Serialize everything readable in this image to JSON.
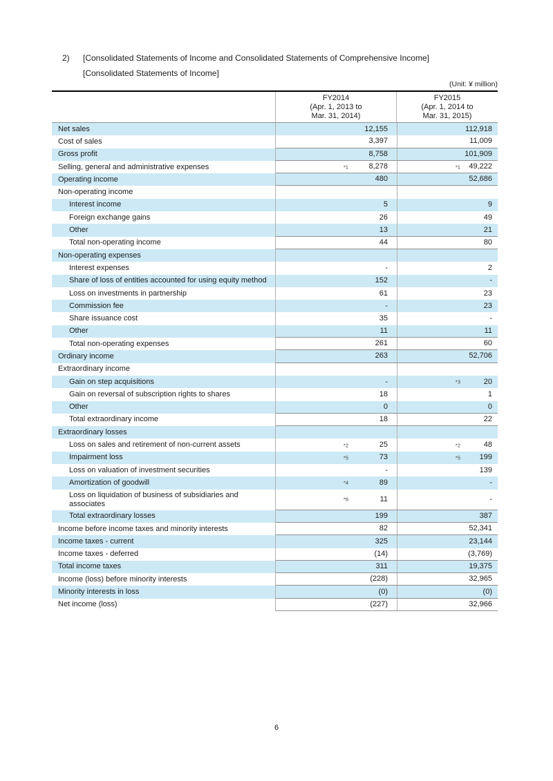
{
  "page": {
    "section_number": "2)",
    "title_line1": "[Consolidated Statements of Income and Consolidated Statements of Comprehensive Income]",
    "title_line2": "[Consolidated Statements of Income]",
    "unit_note": "(Unit: ¥ million)",
    "page_number": "6"
  },
  "colors": {
    "row_highlight": "#cde9f5",
    "rule_dark": "#000000",
    "rule_gray": "#8f8f8f",
    "rule_light": "#b0b0b0"
  },
  "table": {
    "columns": [
      {
        "label": "FY2014",
        "period_line1": "(Apr. 1, 2013 to",
        "period_line2": "Mar. 31, 2014)"
      },
      {
        "label": "FY2015",
        "period_line1": "(Apr. 1, 2014 to",
        "period_line2": "Mar. 31, 2015)"
      }
    ],
    "rows": [
      {
        "label": "Net sales",
        "indent": 0,
        "shaded": true,
        "line_below": false,
        "fy2014": "12,155",
        "fy2015": "112,918"
      },
      {
        "label": "Cost of sales",
        "indent": 0,
        "shaded": false,
        "line_below": true,
        "fy2014": "3,397",
        "fy2015": "11,009"
      },
      {
        "label": "Gross profit",
        "indent": 0,
        "shaded": true,
        "line_below": true,
        "fy2014": "8,758",
        "fy2015": "101,909"
      },
      {
        "label": "Selling, general and administrative expenses",
        "indent": 0,
        "shaded": false,
        "line_below": true,
        "fy2014": "8,278",
        "fy2014_note": "*1",
        "fy2015": "49,222",
        "fy2015_note": "*1"
      },
      {
        "label": "Operating income",
        "indent": 0,
        "shaded": true,
        "line_below": true,
        "fy2014": "480",
        "fy2015": "52,686"
      },
      {
        "label": "Non-operating income",
        "indent": 0,
        "shaded": false,
        "line_below": false,
        "fy2014": "",
        "fy2015": ""
      },
      {
        "label": "Interest income",
        "indent": 1,
        "shaded": true,
        "line_below": false,
        "fy2014": "5",
        "fy2015": "9"
      },
      {
        "label": "Foreign exchange gains",
        "indent": 1,
        "shaded": false,
        "line_below": false,
        "fy2014": "26",
        "fy2015": "49"
      },
      {
        "label": "Other",
        "indent": 1,
        "shaded": true,
        "line_below": true,
        "fy2014": "13",
        "fy2015": "21"
      },
      {
        "label": "Total non-operating income",
        "indent": 1,
        "shaded": false,
        "line_below": true,
        "fy2014": "44",
        "fy2015": "80"
      },
      {
        "label": "Non-operating expenses",
        "indent": 0,
        "shaded": true,
        "line_below": false,
        "fy2014": "",
        "fy2015": ""
      },
      {
        "label": "Interest expenses",
        "indent": 1,
        "shaded": false,
        "line_below": false,
        "fy2014": "-",
        "fy2015": "2"
      },
      {
        "label": "Share of loss of entities accounted for using equity method",
        "indent": 1,
        "shaded": true,
        "line_below": false,
        "fy2014": "152",
        "fy2015": "-"
      },
      {
        "label": "Loss on investments in partnership",
        "indent": 1,
        "shaded": false,
        "line_below": false,
        "fy2014": "61",
        "fy2015": "23"
      },
      {
        "label": "Commission fee",
        "indent": 1,
        "shaded": true,
        "line_below": false,
        "fy2014": "-",
        "fy2015": "23"
      },
      {
        "label": "Share issuance cost",
        "indent": 1,
        "shaded": false,
        "line_below": false,
        "fy2014": "35",
        "fy2015": "-"
      },
      {
        "label": "Other",
        "indent": 1,
        "shaded": true,
        "line_below": true,
        "fy2014": "11",
        "fy2015": "11"
      },
      {
        "label": "Total non-operating expenses",
        "indent": 1,
        "shaded": false,
        "line_below": true,
        "fy2014": "261",
        "fy2015": "60"
      },
      {
        "label": "Ordinary income",
        "indent": 0,
        "shaded": true,
        "line_below": true,
        "fy2014": "263",
        "fy2015": "52,706"
      },
      {
        "label": "Extraordinary income",
        "indent": 0,
        "shaded": false,
        "line_below": false,
        "fy2014": "",
        "fy2015": ""
      },
      {
        "label": "Gain on step acquisitions",
        "indent": 1,
        "shaded": true,
        "line_below": false,
        "fy2014": "-",
        "fy2015": "20",
        "fy2015_note": "*3"
      },
      {
        "label": "Gain on reversal of subscription rights to shares",
        "indent": 1,
        "shaded": false,
        "line_below": false,
        "fy2014": "18",
        "fy2015": "1"
      },
      {
        "label": "Other",
        "indent": 1,
        "shaded": true,
        "line_below": true,
        "fy2014": "0",
        "fy2015": "0"
      },
      {
        "label": "Total extraordinary income",
        "indent": 1,
        "shaded": false,
        "line_below": true,
        "fy2014": "18",
        "fy2015": "22"
      },
      {
        "label": "Extraordinary losses",
        "indent": 0,
        "shaded": true,
        "line_below": false,
        "fy2014": "",
        "fy2015": ""
      },
      {
        "label": "Loss on sales and retirement of non-current assets",
        "indent": 1,
        "shaded": false,
        "line_below": false,
        "fy2014": "25",
        "fy2014_note": "*2",
        "fy2015": "48",
        "fy2015_note": "*2"
      },
      {
        "label": "Impairment loss",
        "indent": 1,
        "shaded": true,
        "line_below": false,
        "fy2014": "73",
        "fy2014_note": "*5",
        "fy2015": "199",
        "fy2015_note": "*5"
      },
      {
        "label": "Loss on valuation of investment securities",
        "indent": 1,
        "shaded": false,
        "line_below": false,
        "fy2014": "-",
        "fy2015": "139"
      },
      {
        "label": "Amortization of goodwill",
        "indent": 1,
        "shaded": true,
        "line_below": false,
        "fy2014": "89",
        "fy2014_note": "*4",
        "fy2015": "-"
      },
      {
        "label": "Loss on liquidation of business of subsidiaries and associates",
        "indent": 1,
        "shaded": false,
        "line_below": true,
        "fy2014": "11",
        "fy2014_note": "*6",
        "fy2015": "-"
      },
      {
        "label": "Total extraordinary losses",
        "indent": 1,
        "shaded": true,
        "line_below": true,
        "fy2014": "199",
        "fy2015": "387"
      },
      {
        "label": "Income before income taxes and minority interests",
        "indent": 0,
        "shaded": false,
        "line_below": true,
        "fy2014": "82",
        "fy2015": "52,341"
      },
      {
        "label": "Income taxes - current",
        "indent": 0,
        "shaded": true,
        "line_below": false,
        "fy2014": "325",
        "fy2015": "23,144"
      },
      {
        "label": "Income taxes - deferred",
        "indent": 0,
        "shaded": false,
        "line_below": true,
        "fy2014": "(14)",
        "fy2015": "(3,769)"
      },
      {
        "label": "Total income taxes",
        "indent": 0,
        "shaded": true,
        "line_below": true,
        "fy2014": "311",
        "fy2015": "19,375"
      },
      {
        "label": "Income (loss) before minority interests",
        "indent": 0,
        "shaded": false,
        "line_below": true,
        "fy2014": "(228)",
        "fy2015": "32,965"
      },
      {
        "label": "Minority interests in loss",
        "indent": 0,
        "shaded": true,
        "line_below": true,
        "fy2014": "(0)",
        "fy2015": "(0)"
      },
      {
        "label": "Net income (loss)",
        "indent": 0,
        "shaded": false,
        "line_below": true,
        "fy2014": "(227)",
        "fy2015": "32,966"
      }
    ]
  }
}
